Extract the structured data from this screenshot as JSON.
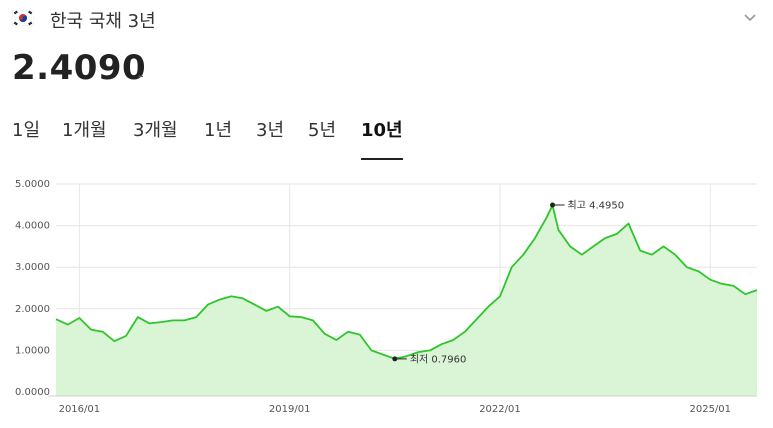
{
  "header": {
    "title": "한국 국채 3년",
    "flag_icon": "korea-flag-icon",
    "expand_icon": "chevron-down-icon"
  },
  "quote": {
    "price": "2.4090",
    "change": "-"
  },
  "tabs": [
    {
      "label": "1일",
      "active": false
    },
    {
      "label": "1개월",
      "active": false
    },
    {
      "label": "3개월",
      "active": false
    },
    {
      "label": "1년",
      "active": false
    },
    {
      "label": "3년",
      "active": false
    },
    {
      "label": "5년",
      "active": false
    },
    {
      "label": "10년",
      "active": true
    }
  ],
  "colors": {
    "line": "#2ec52a",
    "fill": "#d9f5d6",
    "grid": "#e6e6e6"
  },
  "chart_data": {
    "type": "area",
    "x_tick_labels": [
      "2016/01",
      "2019/01",
      "2022/01",
      "2025/01"
    ],
    "y_tick_labels": [
      "5.0000",
      "4.0000",
      "3.0000",
      "2.0000",
      "1.0000",
      "0.0000"
    ],
    "ylim": [
      0,
      5
    ],
    "xlim": [
      "2015-09",
      "2025-09"
    ],
    "grid": true,
    "series": [
      {
        "x": [
          "2015-09",
          "2015-11",
          "2016-01",
          "2016-03",
          "2016-05",
          "2016-07",
          "2016-09",
          "2016-11",
          "2017-01",
          "2017-03",
          "2017-05",
          "2017-07",
          "2017-09",
          "2017-11",
          "2018-01",
          "2018-03",
          "2018-05",
          "2018-07",
          "2018-09",
          "2018-11",
          "2019-01",
          "2019-03",
          "2019-05",
          "2019-07",
          "2019-09",
          "2019-11",
          "2020-01",
          "2020-03",
          "2020-05",
          "2020-07",
          "2020-09",
          "2020-11",
          "2021-01",
          "2021-03",
          "2021-05",
          "2021-07",
          "2021-09",
          "2021-11",
          "2022-01",
          "2022-03",
          "2022-05",
          "2022-07",
          "2022-09",
          "2022-10",
          "2022-11",
          "2023-01",
          "2023-03",
          "2023-05",
          "2023-07",
          "2023-09",
          "2023-11",
          "2024-01",
          "2024-03",
          "2024-05",
          "2024-07",
          "2024-09",
          "2024-11",
          "2025-01",
          "2025-03",
          "2025-05",
          "2025-07",
          "2025-09"
        ],
        "values": [
          1.75,
          1.62,
          1.78,
          1.5,
          1.45,
          1.22,
          1.35,
          1.8,
          1.65,
          1.68,
          1.72,
          1.72,
          1.8,
          2.1,
          2.22,
          2.3,
          2.25,
          2.1,
          1.95,
          2.05,
          1.82,
          1.8,
          1.72,
          1.4,
          1.25,
          1.45,
          1.38,
          1.0,
          0.9,
          0.8,
          0.86,
          0.96,
          1.0,
          1.15,
          1.25,
          1.45,
          1.75,
          2.05,
          2.3,
          3.0,
          3.3,
          3.7,
          4.2,
          4.49,
          3.9,
          3.5,
          3.3,
          3.5,
          3.7,
          3.8,
          4.05,
          3.4,
          3.3,
          3.5,
          3.3,
          3.0,
          2.9,
          2.7,
          2.6,
          2.55,
          2.35,
          2.45
        ]
      }
    ],
    "annotations": [
      {
        "label": "최고 4.4950",
        "x": "2022-10",
        "y": 4.495
      },
      {
        "label": "최저 0.7960",
        "x": "2020-07",
        "y": 0.796
      }
    ]
  }
}
